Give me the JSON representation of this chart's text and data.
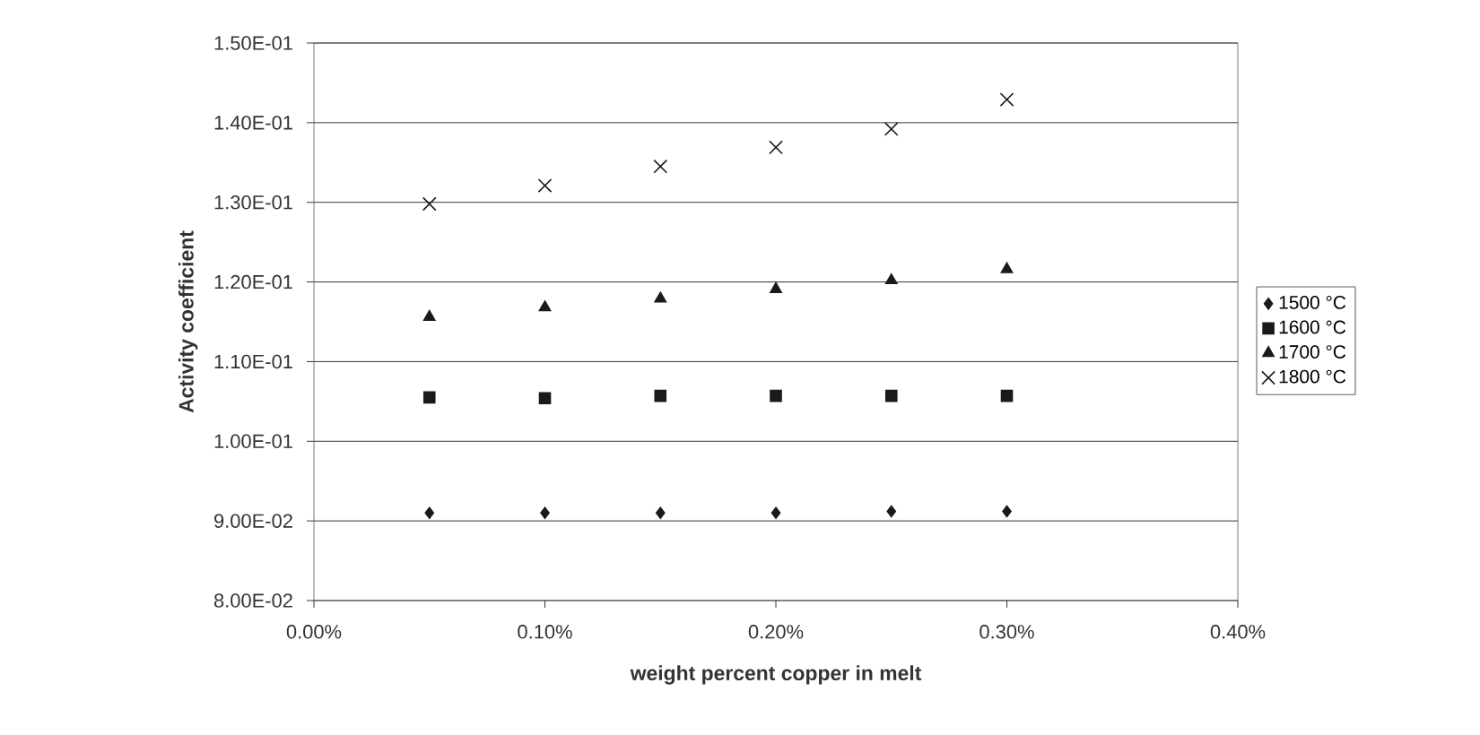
{
  "chart_data": {
    "type": "scatter",
    "xlabel": "weight percent copper in melt",
    "ylabel": "Activity coefficient",
    "x": [
      0.05,
      0.1,
      0.15,
      0.2,
      0.25,
      0.3
    ],
    "series": [
      {
        "name": "1500 °C",
        "color": "#1a1a1a",
        "marker": "diamond",
        "values": [
          0.091,
          0.091,
          0.091,
          0.091,
          0.0912,
          0.0912
        ]
      },
      {
        "name": "1600 °C",
        "color": "#1a1a1a",
        "marker": "square",
        "values": [
          0.1055,
          0.1054,
          0.1057,
          0.1057,
          0.1057,
          0.1057
        ]
      },
      {
        "name": "1700 °C",
        "color": "#1a1a1a",
        "marker": "triangle",
        "values": [
          0.1156,
          0.1168,
          0.1179,
          0.1191,
          0.1202,
          0.1216
        ]
      },
      {
        "name": "1800 °C",
        "color": "#1a1a1a",
        "marker": "cross",
        "values": [
          0.1298,
          0.1321,
          0.1345,
          0.1369,
          0.1392,
          0.1429
        ]
      }
    ],
    "xlim": [
      0,
      0.4
    ],
    "xticks": [
      {
        "value": 0,
        "label": "0.00%"
      },
      {
        "value": 0.1,
        "label": "0.10%"
      },
      {
        "value": 0.2,
        "label": "0.20%"
      },
      {
        "value": 0.3,
        "label": "0.30%"
      },
      {
        "value": 0.4,
        "label": "0.40%"
      }
    ],
    "ylim": [
      0.08,
      0.15
    ],
    "yticks": [
      {
        "value": 0.08,
        "label": "8.00E-02"
      },
      {
        "value": 0.09,
        "label": "9.00E-02"
      },
      {
        "value": 0.1,
        "label": "1.00E-01"
      },
      {
        "value": 0.11,
        "label": "1.10E-01"
      },
      {
        "value": 0.12,
        "label": "1.20E-01"
      },
      {
        "value": 0.13,
        "label": "1.30E-01"
      },
      {
        "value": 0.14,
        "label": "1.40E-01"
      },
      {
        "value": 0.15,
        "label": "1.50E-01"
      }
    ],
    "grid": "y",
    "legend": "right"
  }
}
